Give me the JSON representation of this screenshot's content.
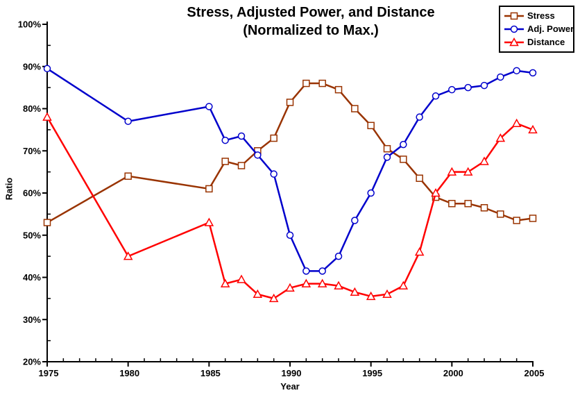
{
  "chart_data": {
    "type": "line",
    "title": "Stress, Adjusted Power, and Distance",
    "subtitle": "(Normalized to Max.)",
    "xlabel": "Year",
    "ylabel": "Ratio",
    "x": [
      1975,
      1980,
      1985,
      1986,
      1987,
      1988,
      1989,
      1990,
      1991,
      1992,
      1993,
      1994,
      1995,
      1996,
      1997,
      1998,
      1999,
      2000,
      2001,
      2002,
      2003,
      2004,
      2005
    ],
    "series": [
      {
        "name": "Stress",
        "color": "#993300",
        "marker": "square",
        "values": [
          53,
          64,
          61,
          67.5,
          66.5,
          70,
          73,
          81.5,
          86,
          86,
          84.5,
          80,
          76,
          70.5,
          68,
          63.5,
          59,
          57.5,
          57.5,
          56.5,
          55,
          53.5,
          54
        ]
      },
      {
        "name": "Adj. Power",
        "color": "#0000CC",
        "marker": "circle",
        "values": [
          89.5,
          77,
          80.5,
          72.5,
          73.5,
          69,
          64.5,
          50,
          41.5,
          41.5,
          45,
          53.5,
          60,
          68.5,
          71.5,
          78,
          83,
          84.5,
          85,
          85.5,
          87.5,
          89,
          88.5
        ]
      },
      {
        "name": "Distance",
        "color": "#FF0000",
        "marker": "triangle",
        "values": [
          78,
          45,
          53,
          38.5,
          39.5,
          36,
          35,
          37.5,
          38.5,
          38.5,
          38,
          36.5,
          35.5,
          36,
          38,
          46,
          60,
          65,
          65,
          67.5,
          73,
          76.5,
          75
        ]
      }
    ],
    "xlim": [
      1975,
      2005
    ],
    "ylim": [
      20,
      100
    ],
    "x_tick_labels": [
      "1975",
      "1980",
      "1985",
      "1990",
      "1995",
      "2000",
      "2005"
    ],
    "y_tick_labels": [
      "20%",
      "30%",
      "40%",
      "50%",
      "60%",
      "70%",
      "80%",
      "90%",
      "100%"
    ],
    "x_minor_step": 1,
    "y_minor_step": 5,
    "grid": false,
    "legend_position": "top-right",
    "background_color": "#FFFFFF",
    "axis_color": "#000000",
    "text_color": "#000000"
  }
}
